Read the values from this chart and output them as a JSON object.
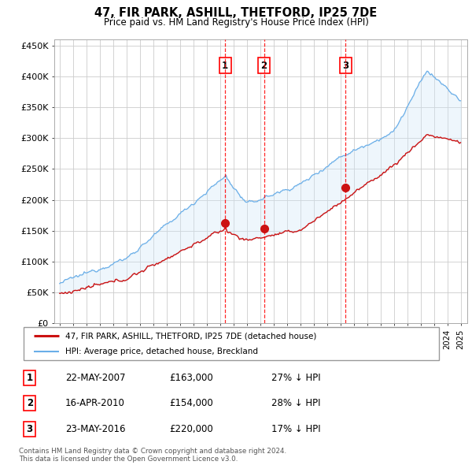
{
  "title": "47, FIR PARK, ASHILL, THETFORD, IP25 7DE",
  "subtitle": "Price paid vs. HM Land Registry's House Price Index (HPI)",
  "ylim": [
    0,
    460000
  ],
  "yticks": [
    0,
    50000,
    100000,
    150000,
    200000,
    250000,
    300000,
    350000,
    400000,
    450000
  ],
  "ytick_labels": [
    "£0",
    "£50K",
    "£100K",
    "£150K",
    "£200K",
    "£250K",
    "£300K",
    "£350K",
    "£400K",
    "£450K"
  ],
  "sale_dates": [
    2007.38,
    2010.29,
    2016.39
  ],
  "sale_prices": [
    163000,
    154000,
    220000
  ],
  "sale_labels": [
    "1",
    "2",
    "3"
  ],
  "hpi_color": "#6aaee8",
  "hpi_fill_color": "#d0e8f8",
  "price_color": "#cc1111",
  "legend_line1": "47, FIR PARK, ASHILL, THETFORD, IP25 7DE (detached house)",
  "legend_line2": "HPI: Average price, detached house, Breckland",
  "table_rows": [
    {
      "num": "1",
      "date": "22-MAY-2007",
      "price": "£163,000",
      "note": "27% ↓ HPI"
    },
    {
      "num": "2",
      "date": "16-APR-2010",
      "price": "£154,000",
      "note": "28% ↓ HPI"
    },
    {
      "num": "3",
      "date": "23-MAY-2016",
      "price": "£220,000",
      "note": "17% ↓ HPI"
    }
  ],
  "footer": "Contains HM Land Registry data © Crown copyright and database right 2024.\nThis data is licensed under the Open Government Licence v3.0.",
  "bg_color": "#ffffff",
  "grid_color": "#cccccc"
}
